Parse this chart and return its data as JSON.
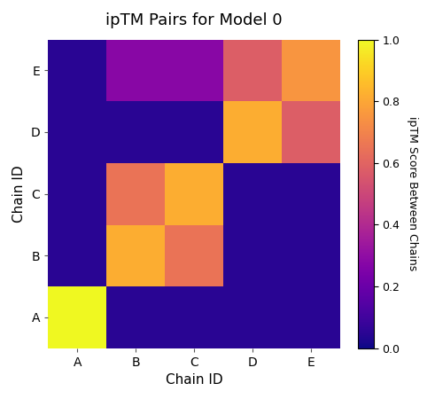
{
  "title": "ipTM Pairs for Model 0",
  "xlabel": "Chain ID",
  "ylabel": "Chain ID",
  "colorbar_label": "ipTM Score Between Chains",
  "chains": [
    "A",
    "B",
    "C",
    "D",
    "E"
  ],
  "matrix": [
    [
      1.0,
      0.05,
      0.05,
      0.05,
      0.05
    ],
    [
      0.05,
      0.82,
      0.65,
      0.05,
      0.05
    ],
    [
      0.05,
      0.65,
      0.82,
      0.05,
      0.05
    ],
    [
      0.05,
      0.05,
      0.05,
      0.82,
      0.58
    ],
    [
      0.05,
      0.28,
      0.28,
      0.58,
      0.75
    ]
  ],
  "vmin": 0,
  "vmax": 1,
  "cmap": "plasma",
  "background_color": "#ffffff",
  "title_fontsize": 13,
  "label_fontsize": 11,
  "tick_fontsize": 10,
  "colorbar_label_fontsize": 9,
  "colorbar_tick_fontsize": 9
}
